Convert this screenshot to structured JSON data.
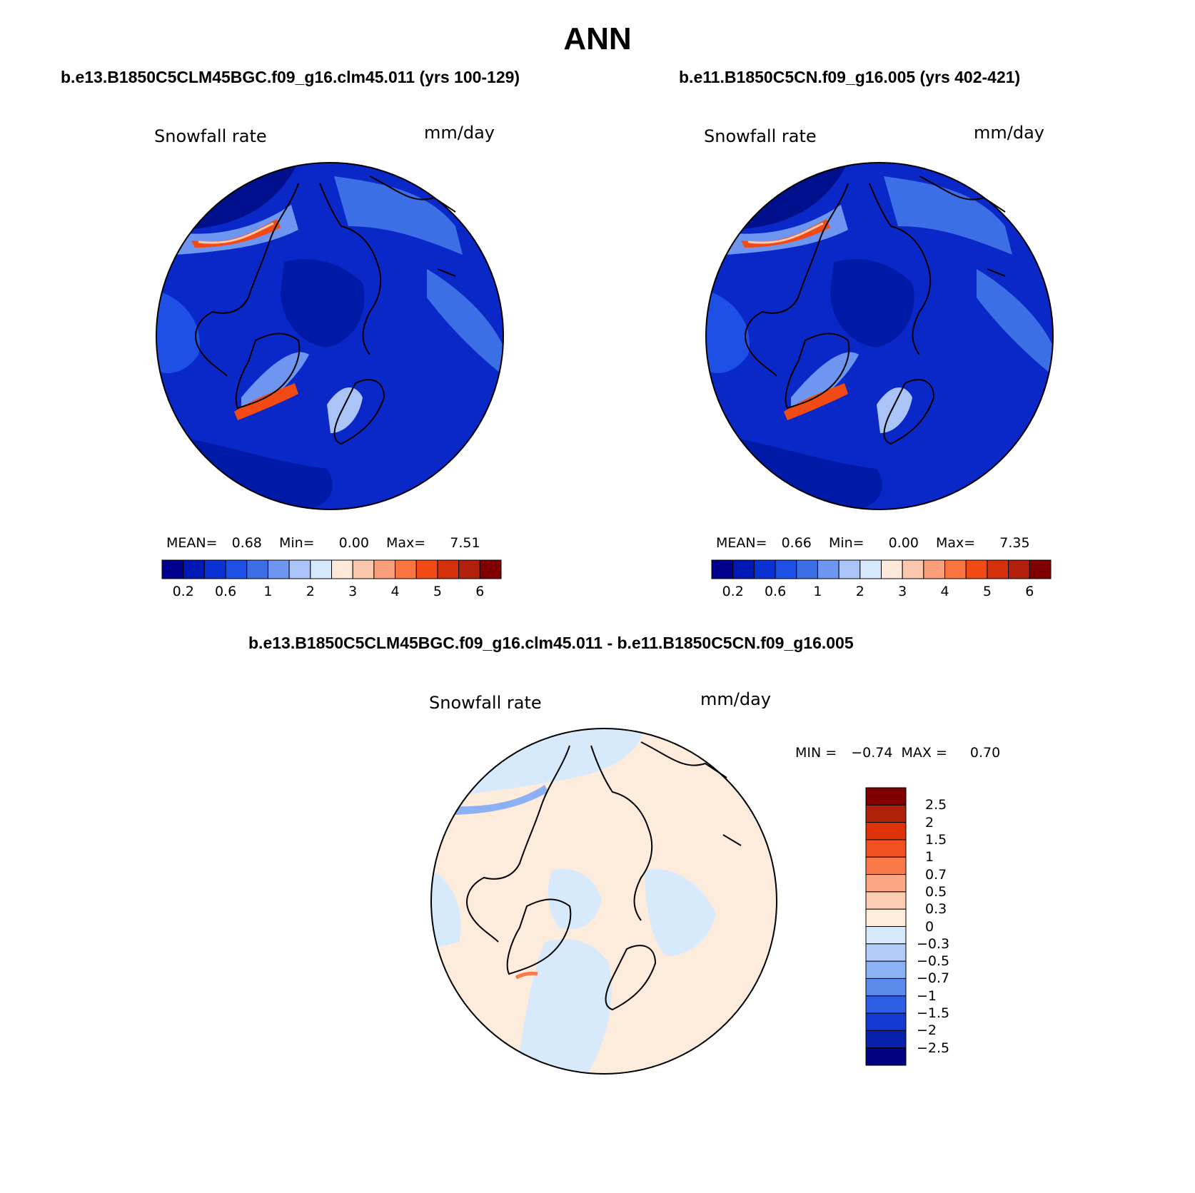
{
  "title": "ANN",
  "panels": [
    {
      "case_title": "b.e13.B1850C5CLM45BGC.f09_g16.clm45.011 (yrs 100-129)",
      "variable": "Snowfall rate",
      "units": "mm/day",
      "stats": {
        "mean_label": "MEAN=",
        "mean": "0.68",
        "min_label": "Min=",
        "min": "0.00",
        "max_label": "Max=",
        "max": "7.51"
      }
    },
    {
      "case_title": "b.e11.B1850C5CN.f09_g16.005 (yrs 402-421)",
      "variable": "Snowfall rate",
      "units": "mm/day",
      "stats": {
        "mean_label": "MEAN=",
        "mean": "0.66",
        "min_label": "Min=",
        "min": "0.00",
        "max_label": "Max=",
        "max": "7.35"
      }
    }
  ],
  "colorbar_top": {
    "colors": [
      "#00008c",
      "#0018b4",
      "#0a32d2",
      "#1e50e6",
      "#3c6ee6",
      "#6e96f0",
      "#aac4f8",
      "#d7e8fc",
      "#fde9d9",
      "#fbc7ad",
      "#fb9f7a",
      "#f9743e",
      "#f14a14",
      "#d4300a",
      "#b0200a",
      "#800000"
    ],
    "tick_labels": [
      "0.2",
      "0.6",
      "1",
      "2",
      "3",
      "4",
      "5",
      "6"
    ]
  },
  "difference": {
    "title": "b.e13.B1850C5CLM45BGC.f09_g16.clm45.011 - b.e11.B1850C5CN.f09_g16.005",
    "variable": "Snowfall rate",
    "units": "mm/day",
    "min_label": "MIN =",
    "min": "−0.74",
    "max_label": "MAX =",
    "max": "0.70",
    "colorbar": {
      "colors": [
        "#800000",
        "#b0200a",
        "#e03208",
        "#f05020",
        "#f97a48",
        "#fba684",
        "#fcccb2",
        "#fdebdc",
        "#d7eafc",
        "#b2cef8",
        "#8cb0f4",
        "#5a8aec",
        "#2e5ee6",
        "#1438d2",
        "#0820aa",
        "#000080"
      ],
      "tick_labels": [
        "2.5",
        "2",
        "1.5",
        "1",
        "0.7",
        "0.5",
        "0.3",
        "0",
        "−0.3",
        "−0.5",
        "−0.7",
        "−1",
        "−1.5",
        "−2",
        "−2.5"
      ]
    }
  },
  "map_colors": {
    "ocean_dark": "#0a28c8",
    "mid_blue": "#1e50e6",
    "light_blue": "#3c6ee6",
    "pale_blue": "#6e96f0",
    "very_pale": "#aac4f8",
    "warm": "#f14a14",
    "diff_pos": "#fdebdc",
    "diff_neg": "#d7eafc"
  }
}
